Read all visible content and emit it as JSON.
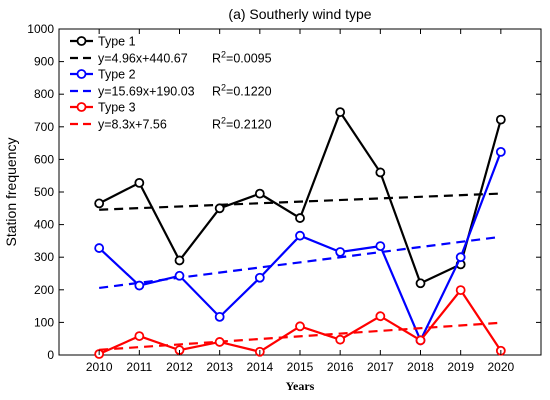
{
  "chart_data": {
    "type": "line",
    "title": "(a)  Southerly wind type",
    "xlabel": "Years",
    "ylabel": "Station  frequency",
    "x": [
      2010,
      2011,
      2012,
      2013,
      2014,
      2015,
      2016,
      2017,
      2018,
      2019,
      2020
    ],
    "xlim": [
      2009,
      2021
    ],
    "ylim": [
      0,
      1000
    ],
    "yticks": [
      0,
      100,
      200,
      300,
      400,
      500,
      600,
      700,
      800,
      900,
      1000
    ],
    "grid": false,
    "legend_position": "top-left",
    "series": [
      {
        "name": "Type 1",
        "color": "#000000",
        "values": [
          465,
          528,
          290,
          450,
          495,
          420,
          745,
          560,
          220,
          278,
          722
        ],
        "trend": {
          "label": "y=4.96x+440.67",
          "r2_prefix": "R",
          "r2_exp": "2",
          "r2_value": "=0.0095",
          "slope": 4.96,
          "intercept": 440.67
        }
      },
      {
        "name": "Type 2",
        "color": "#0000ff",
        "values": [
          328,
          213,
          243,
          117,
          237,
          366,
          316,
          334,
          45,
          300,
          623
        ],
        "trend": {
          "label": "y=15.69x+190.03",
          "r2_prefix": "R",
          "r2_exp": "2",
          "r2_value": "=0.1220",
          "slope": 15.69,
          "intercept": 190.03
        }
      },
      {
        "name": "Type 3",
        "color": "#ff0000",
        "values": [
          3,
          58,
          15,
          40,
          10,
          88,
          47,
          119,
          45,
          199,
          13
        ],
        "trend": {
          "label": "y=8.3x+7.56",
          "r2_prefix": "R",
          "r2_exp": "2",
          "r2_value": "=0.2120",
          "slope": 8.3,
          "intercept": 7.56
        }
      }
    ]
  }
}
